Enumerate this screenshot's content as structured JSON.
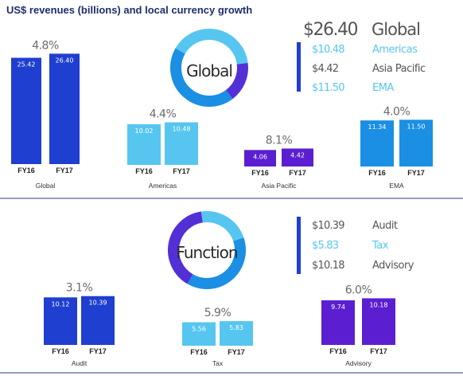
{
  "title": "US$ revenues (billions) and local currency growth",
  "colors": {
    "global": "#1f3fd1",
    "americas": "#56c6f0",
    "asia_pacific": "#5b1fd1",
    "ema": "#1a8fe3",
    "audit": "#1f3fd1",
    "tax": "#56c6f0",
    "advisory": "#5b1fd1",
    "ring_dark": "#5330d6",
    "ring_mid": "#1a8fe3",
    "ring_light": "#56c6f0",
    "divider": "#2a3a8a",
    "marker_global": "#1f3fd1",
    "marker_function": "#1f3fd1"
  },
  "regions": {
    "ring_label": "Global",
    "total_value": "$26.40",
    "total_label": "Global",
    "legend": [
      {
        "value": "$10.48",
        "label": "Americas",
        "color": "#56c6f0",
        "value_color": "#56c6f0",
        "label_color": "#56c6f0"
      },
      {
        "value": "$4.42",
        "label": "Asia Pacific",
        "color": "#5b1fd1",
        "value_color": "#555555",
        "label_color": "#555555"
      },
      {
        "value": "$11.50",
        "label": "EMA",
        "color": "#1a8fe3",
        "value_color": "#56c6f0",
        "label_color": "#56c6f0"
      }
    ]
  },
  "functions": {
    "ring_label": "Function",
    "legend": [
      {
        "value": "$10.39",
        "label": "Audit",
        "color": "#1f3fd1",
        "value_color": "#555555",
        "label_color": "#555555"
      },
      {
        "value": "$5.83",
        "label": "Tax",
        "color": "#56c6f0",
        "value_color": "#56c6f0",
        "label_color": "#56c6f0"
      },
      {
        "value": "$10.18",
        "label": "Advisory",
        "color": "#5b1fd1",
        "value_color": "#555555",
        "label_color": "#555555"
      }
    ]
  },
  "chart_data": [
    {
      "type": "bar",
      "name": "Global",
      "growth": "4.8%",
      "categories": [
        "FY16",
        "FY17"
      ],
      "values": [
        25.42,
        26.4
      ],
      "labels": [
        "25.42",
        "26.40"
      ],
      "color": "#1f3fd1"
    },
    {
      "type": "bar",
      "name": "Americas",
      "growth": "4.4%",
      "categories": [
        "FY16",
        "FY17"
      ],
      "values": [
        10.02,
        10.48
      ],
      "labels": [
        "10.02",
        "10.48"
      ],
      "color": "#56c6f0"
    },
    {
      "type": "bar",
      "name": "Asia Pacific",
      "growth": "8.1%",
      "categories": [
        "FY16",
        "FY17"
      ],
      "values": [
        4.06,
        4.42
      ],
      "labels": [
        "4.06",
        "4.42"
      ],
      "color": "#5b1fd1"
    },
    {
      "type": "bar",
      "name": "EMA",
      "growth": "4.0%",
      "categories": [
        "FY16",
        "FY17"
      ],
      "values": [
        11.34,
        11.5
      ],
      "labels": [
        "11.34",
        "11.50"
      ],
      "color": "#1a8fe3"
    },
    {
      "type": "bar",
      "name": "Audit",
      "growth": "3.1%",
      "categories": [
        "FY16",
        "FY17"
      ],
      "values": [
        10.12,
        10.39
      ],
      "labels": [
        "10.12",
        "10.39"
      ],
      "color": "#1f3fd1"
    },
    {
      "type": "bar",
      "name": "Tax",
      "growth": "5.9%",
      "categories": [
        "FY16",
        "FY17"
      ],
      "values": [
        5.56,
        5.83
      ],
      "labels": [
        "5.56",
        "5.83"
      ],
      "color": "#56c6f0"
    },
    {
      "type": "bar",
      "name": "Advisory",
      "growth": "6.0%",
      "categories": [
        "FY16",
        "FY17"
      ],
      "values": [
        9.74,
        10.18
      ],
      "labels": [
        "9.74",
        "10.18"
      ],
      "color": "#5b1fd1"
    }
  ],
  "rings": [
    {
      "label": "Global",
      "values": [
        10.48,
        4.42,
        11.5
      ],
      "colors": [
        "#56c6f0",
        "#5330d6",
        "#1a8fe3"
      ]
    },
    {
      "label": "Function",
      "values": [
        10.39,
        5.83,
        10.18
      ],
      "colors": [
        "#5330d6",
        "#56c6f0",
        "#1a8fe3"
      ]
    }
  ]
}
